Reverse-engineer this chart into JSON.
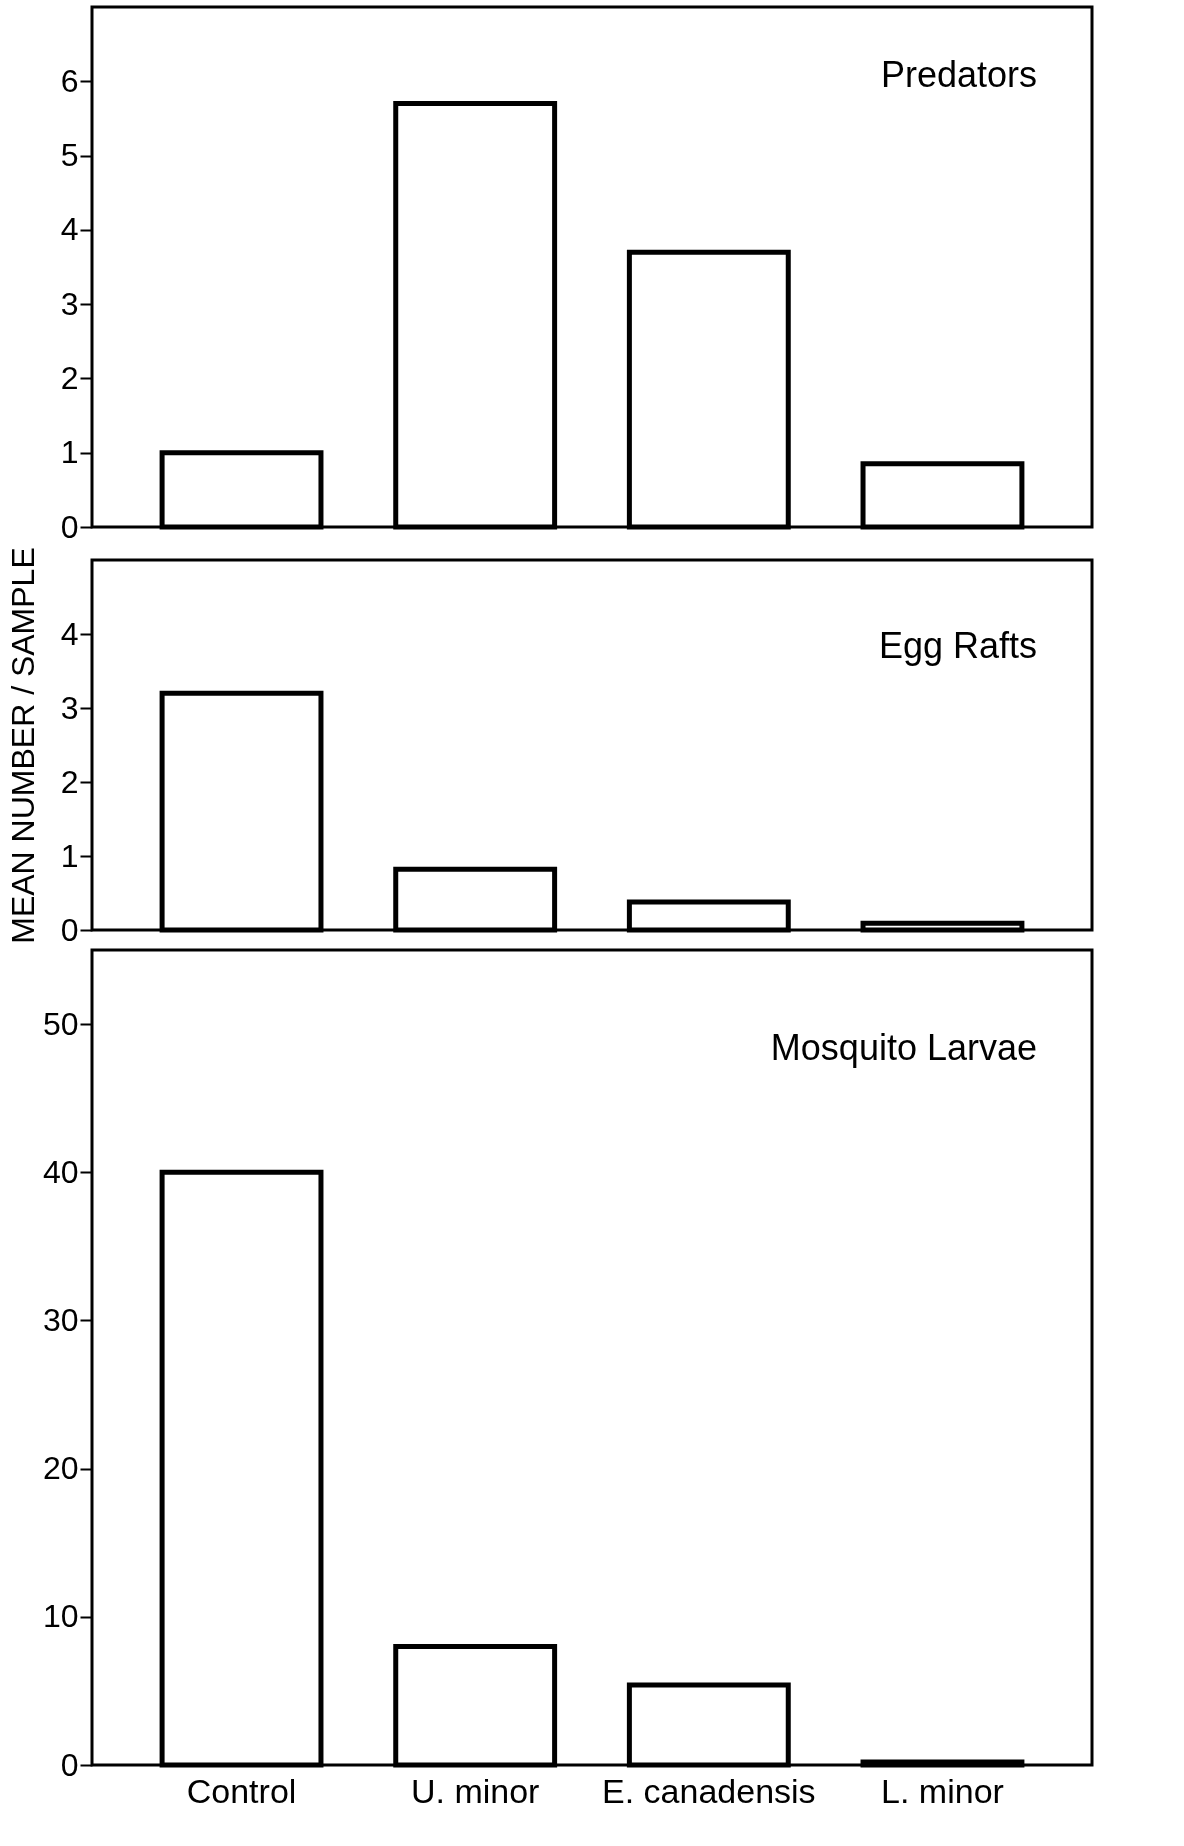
{
  "chart_data": [
    {
      "type": "bar",
      "title": "Predators",
      "categories": [
        null,
        null,
        null,
        null
      ],
      "values": [
        1.0,
        5.7,
        3.7,
        0.85
      ],
      "color": "#ffffff",
      "ylim": [
        0,
        7
      ],
      "yticks": [
        0,
        1,
        2,
        3,
        4,
        5,
        6
      ],
      "grid": false,
      "tick_labels": "y"
    },
    {
      "type": "bar",
      "title": "Egg Rafts",
      "ylabel": "MEAN NUMBER / SAMPLE",
      "categories": [
        null,
        null,
        null,
        null
      ],
      "values": [
        3.2,
        0.82,
        0.38,
        0.09
      ],
      "color": "#ffffff",
      "ylim": [
        0,
        5
      ],
      "yticks": [
        0,
        1,
        2,
        3,
        4
      ],
      "grid": false,
      "tick_labels": "y"
    },
    {
      "type": "bar",
      "title": "Mosquito Larvae",
      "categories": [
        "Control",
        "U. minor",
        "E. canadensis",
        "L. minor"
      ],
      "values": [
        40,
        8,
        5.4,
        0.2
      ],
      "color": "#ffffff",
      "ylim": [
        0,
        55
      ],
      "yticks": [
        0,
        10,
        20,
        30,
        40,
        50
      ],
      "grid": false
    }
  ]
}
